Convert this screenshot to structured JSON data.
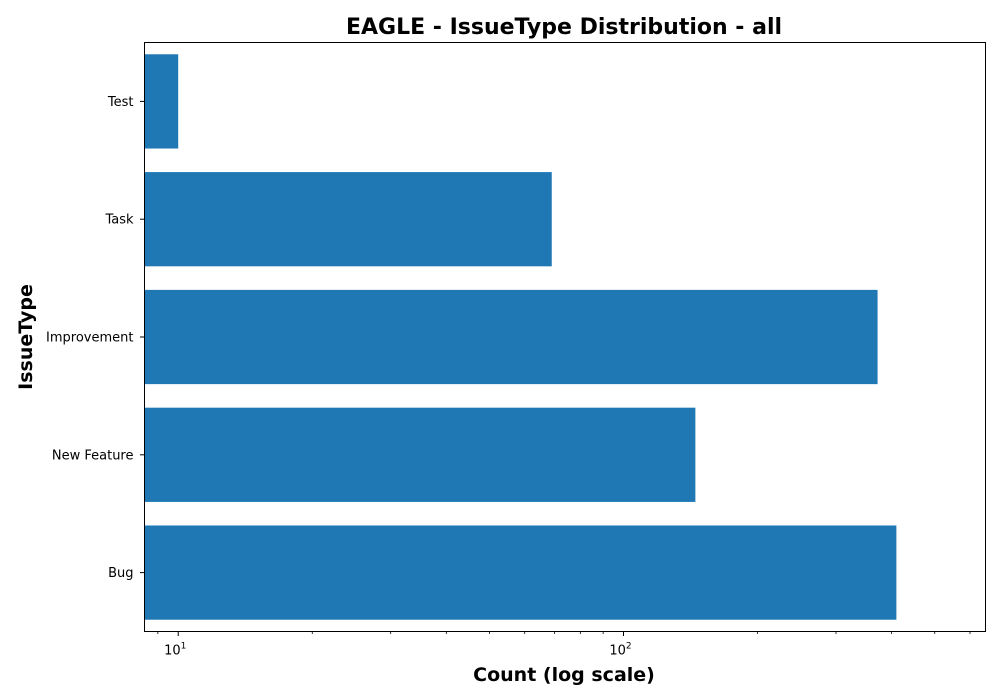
{
  "chart_data": {
    "type": "bar",
    "orientation": "horizontal",
    "title": "EAGLE - IssueType Distribution - all",
    "xlabel": "Count (log scale)",
    "ylabel": "IssueType",
    "xscale": "log",
    "xlim": [
      8.4,
      650
    ],
    "x_ticks": [
      {
        "value": 10,
        "base": "10",
        "exp": "1"
      },
      {
        "value": 100,
        "base": "10",
        "exp": "2"
      }
    ],
    "categories": [
      "Bug",
      "New Feature",
      "Improvement",
      "Task",
      "Test"
    ],
    "values": [
      410,
      145,
      372,
      69,
      10
    ],
    "bar_color": "#1f77b4",
    "grid": false,
    "legend": "none"
  }
}
